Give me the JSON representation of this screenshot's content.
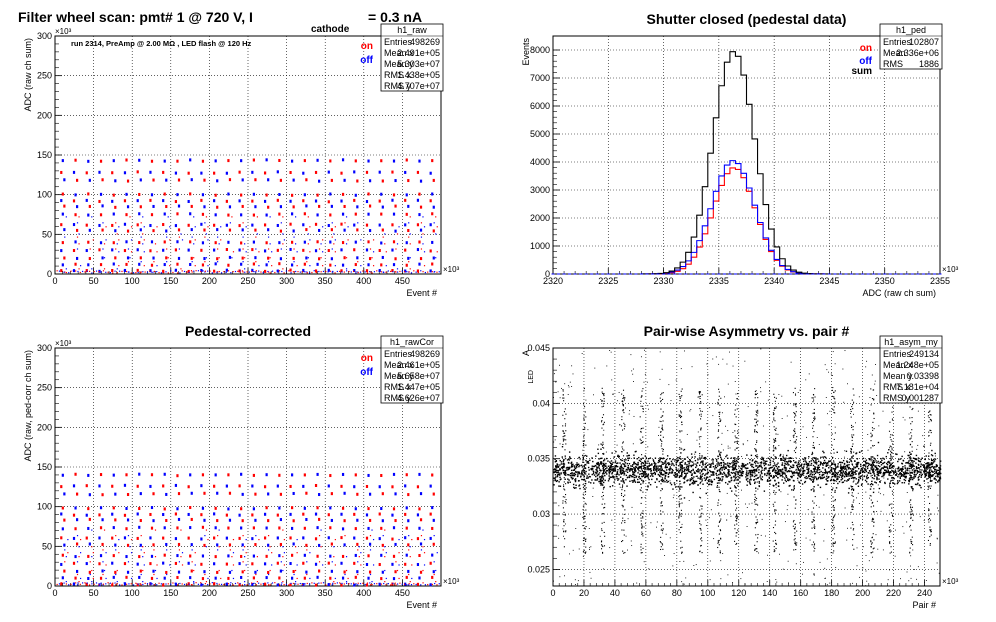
{
  "chart_data": [
    {
      "type": "scatter",
      "title": "Filter wheel scan: pmt#   1 @   720 V, I",
      "title_sub": "cathode",
      "title_suffix": "= 0.3 nA",
      "annotation": "run 2314, PreAmp @ 2.00 MΩ , LED flash @  120 Hz",
      "xlabel": "Event #",
      "ylabel": "ADC (raw ch sum)",
      "x_exponent": "×10³",
      "y_exponent": "×10³",
      "xlim": [
        0,
        500
      ],
      "ylim": [
        0,
        300
      ],
      "xticks": [
        0,
        50,
        100,
        150,
        200,
        250,
        300,
        350,
        400,
        450
      ],
      "yticks": [
        0,
        50,
        100,
        150,
        200,
        250,
        300
      ],
      "grid": true,
      "series": [
        {
          "name": "on",
          "color": "#ff0000"
        },
        {
          "name": "off",
          "color": "#0000ff"
        }
      ],
      "levels": [
        4,
        12,
        20,
        30,
        40,
        55,
        62,
        75,
        85,
        92,
        100,
        118,
        128,
        143
      ],
      "stats": {
        "name": "h1_raw",
        "rows": [
          [
            "Entries",
            "498269"
          ],
          [
            "Mean x",
            "2.491e+05"
          ],
          [
            "Mean y",
            "5.303e+07"
          ],
          [
            "RMS x",
            "1.438e+05"
          ],
          [
            "RMS y",
            "4.707e+07"
          ]
        ]
      }
    },
    {
      "type": "line",
      "title": "Shutter closed (pedestal data)",
      "xlabel": "ADC (raw ch sum)",
      "ylabel": "Events",
      "x_exponent": "×10³",
      "xlim": [
        2320,
        2355
      ],
      "ylim": [
        0,
        8500
      ],
      "xticks": [
        2320,
        2325,
        2330,
        2335,
        2340,
        2345,
        2350,
        2355
      ],
      "yticks": [
        0,
        1000,
        2000,
        3000,
        4000,
        5000,
        6000,
        7000,
        8000
      ],
      "grid": true,
      "series": [
        {
          "name": "on",
          "color": "#ff0000",
          "mean": 2336.4,
          "sigma": 1.9,
          "peak": 3800
        },
        {
          "name": "off",
          "color": "#0000ff",
          "mean": 2336.3,
          "sigma": 1.95,
          "peak": 4050
        },
        {
          "name": "sum",
          "color": "#000000",
          "mean": 2336.35,
          "sigma": 1.9,
          "peak": 7950
        }
      ],
      "stats": {
        "name": "h1_ped",
        "rows": [
          [
            "Entries",
            "102807"
          ],
          [
            "Mean",
            "2.336e+06"
          ],
          [
            "RMS",
            "1886"
          ]
        ]
      }
    },
    {
      "type": "scatter",
      "title": "Pedestal-corrected",
      "xlabel": "Event #",
      "ylabel": "ADC (raw, ped-corr ch sum)",
      "x_exponent": "×10³",
      "y_exponent": "×10³",
      "xlim": [
        0,
        500
      ],
      "ylim": [
        0,
        300
      ],
      "xticks": [
        0,
        50,
        100,
        150,
        200,
        250,
        300,
        350,
        400,
        450
      ],
      "yticks": [
        0,
        50,
        100,
        150,
        200,
        250,
        300
      ],
      "grid": true,
      "series": [
        {
          "name": "on",
          "color": "#ff0000"
        },
        {
          "name": "off",
          "color": "#0000ff"
        }
      ],
      "levels": [
        2,
        10,
        18,
        28,
        38,
        52,
        60,
        73,
        83,
        90,
        98,
        116,
        126,
        140
      ],
      "stats": {
        "name": "h1_rawCor",
        "rows": [
          [
            "Entries",
            "498269"
          ],
          [
            "Mean x",
            "2.461e+05"
          ],
          [
            "Mean y",
            "5.658e+07"
          ],
          [
            "RMS x",
            "1.447e+05"
          ],
          [
            "RMS y",
            "4.626e+07"
          ]
        ]
      }
    },
    {
      "type": "scatter",
      "title": "Pair-wise Asymmetry vs. pair #",
      "xlabel": "Pair #",
      "ylabel": "A",
      "ylabel_sub": "LED",
      "x_exponent": "×10³",
      "xlim": [
        0,
        250
      ],
      "ylim": [
        0.0235,
        0.045
      ],
      "xticks": [
        0,
        20,
        40,
        60,
        80,
        100,
        120,
        140,
        160,
        180,
        200,
        220,
        240
      ],
      "yticks": [
        0.025,
        0.03,
        0.035,
        0.04,
        0.045
      ],
      "ytick_labels": [
        "0.025",
        "0.03",
        "0.035",
        "0.04",
        "0.045"
      ],
      "grid": true,
      "band_center": 0.034,
      "band_halfwidth": 0.0012,
      "spike_x": [
        7,
        20,
        32,
        45,
        57,
        70,
        82,
        95,
        107,
        118,
        131,
        143,
        156,
        168,
        181,
        193,
        206,
        218,
        231,
        243
      ],
      "series": [
        {
          "name": "asymmetry",
          "color": "#000000"
        }
      ],
      "stats": {
        "name": "h1_asym_my",
        "rows": [
          [
            "Entries",
            "249134"
          ],
          [
            "Mean x",
            "1.248e+05"
          ],
          [
            "Mean y",
            "0.03398"
          ],
          [
            "RMS x",
            "7.181e+04"
          ],
          [
            "RMS y",
            "0.001287"
          ]
        ]
      }
    }
  ]
}
